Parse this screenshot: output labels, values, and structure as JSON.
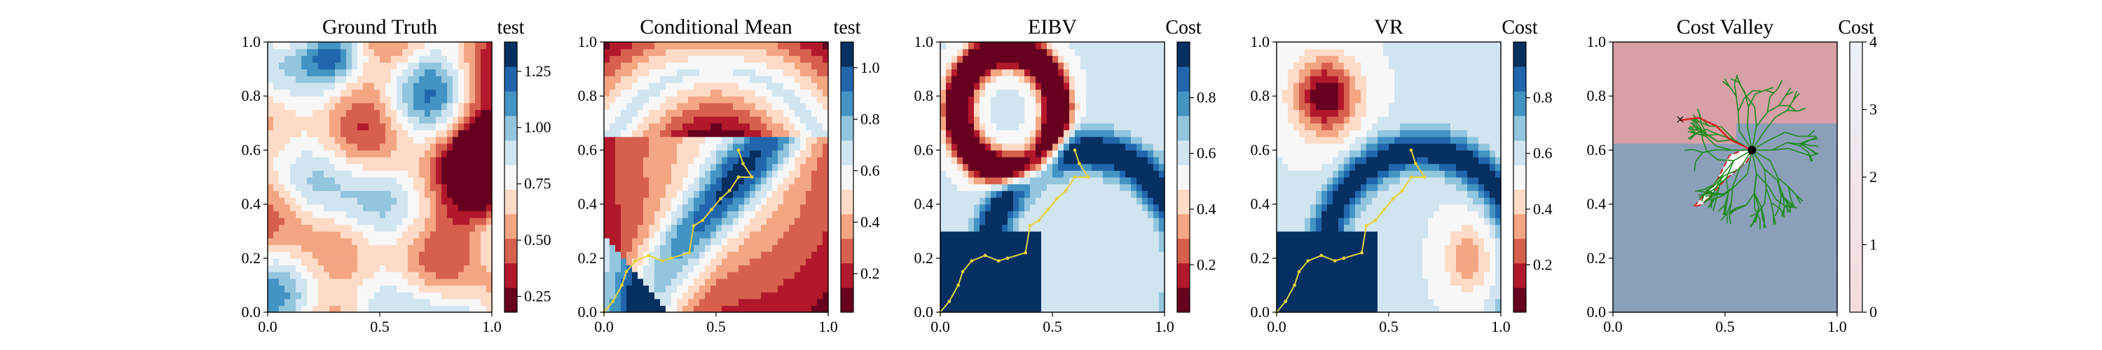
{
  "chart_data": [
    {
      "type": "heatmap",
      "title": "Ground Truth",
      "colorbar_label": "test",
      "colorbar_ticks": [
        "0.25",
        "0.50",
        "0.75",
        "1.00",
        "1.25"
      ],
      "colorbar_range": [
        0.18,
        1.38
      ],
      "xlim": [
        0,
        1
      ],
      "ylim": [
        0,
        1
      ],
      "x_ticks": [
        "0.0",
        "0.5",
        "1.0"
      ],
      "y_ticks": [
        "0.0",
        "0.2",
        "0.4",
        "0.6",
        "0.8",
        "1.0"
      ],
      "field": "ground_truth"
    },
    {
      "type": "heatmap",
      "title": "Conditional Mean",
      "colorbar_label": "test",
      "colorbar_ticks": [
        "0.2",
        "0.4",
        "0.6",
        "0.8",
        "1.0"
      ],
      "colorbar_range": [
        0.05,
        1.1
      ],
      "xlim": [
        0,
        1
      ],
      "ylim": [
        0,
        1
      ],
      "x_ticks": [
        "0.0",
        "0.5",
        "1.0"
      ],
      "y_ticks": [
        "0.0",
        "0.2",
        "0.4",
        "0.6",
        "0.8",
        "1.0"
      ],
      "field": "s_curve",
      "path": [
        [
          0.0,
          0.0
        ],
        [
          0.04,
          0.04
        ],
        [
          0.08,
          0.1
        ],
        [
          0.1,
          0.15
        ],
        [
          0.14,
          0.19
        ],
        [
          0.2,
          0.21
        ],
        [
          0.26,
          0.19
        ],
        [
          0.3,
          0.2
        ],
        [
          0.38,
          0.22
        ],
        [
          0.4,
          0.32
        ],
        [
          0.44,
          0.34
        ],
        [
          0.48,
          0.38
        ],
        [
          0.52,
          0.42
        ],
        [
          0.56,
          0.45
        ],
        [
          0.6,
          0.5
        ],
        [
          0.66,
          0.5
        ],
        [
          0.62,
          0.55
        ],
        [
          0.6,
          0.6
        ]
      ]
    },
    {
      "type": "heatmap",
      "title": "EIBV",
      "colorbar_label": "Cost",
      "colorbar_ticks": [
        "0.2",
        "0.4",
        "0.6",
        "0.8"
      ],
      "colorbar_range": [
        0.03,
        1.0
      ],
      "xlim": [
        0,
        1
      ],
      "ylim": [
        0,
        1
      ],
      "x_ticks": [
        "0.0",
        "0.5",
        "1.0"
      ],
      "y_ticks": [
        "0.0",
        "0.2",
        "0.4",
        "0.6",
        "0.8",
        "1.0"
      ],
      "field": "eibv",
      "path": [
        [
          0.0,
          0.0
        ],
        [
          0.04,
          0.04
        ],
        [
          0.08,
          0.1
        ],
        [
          0.1,
          0.15
        ],
        [
          0.14,
          0.19
        ],
        [
          0.2,
          0.21
        ],
        [
          0.26,
          0.19
        ],
        [
          0.3,
          0.2
        ],
        [
          0.38,
          0.22
        ],
        [
          0.4,
          0.32
        ],
        [
          0.44,
          0.34
        ],
        [
          0.48,
          0.38
        ],
        [
          0.52,
          0.42
        ],
        [
          0.56,
          0.45
        ],
        [
          0.6,
          0.5
        ],
        [
          0.66,
          0.5
        ],
        [
          0.62,
          0.55
        ],
        [
          0.6,
          0.6
        ]
      ]
    },
    {
      "type": "heatmap",
      "title": "VR",
      "colorbar_label": "Cost",
      "colorbar_ticks": [
        "0.2",
        "0.4",
        "0.6",
        "0.8"
      ],
      "colorbar_range": [
        0.03,
        1.0
      ],
      "xlim": [
        0,
        1
      ],
      "ylim": [
        0,
        1
      ],
      "x_ticks": [
        "0.0",
        "0.5",
        "1.0"
      ],
      "y_ticks": [
        "0.0",
        "0.2",
        "0.4",
        "0.6",
        "0.8",
        "1.0"
      ],
      "field": "vr",
      "path": [
        [
          0.0,
          0.0
        ],
        [
          0.04,
          0.04
        ],
        [
          0.08,
          0.1
        ],
        [
          0.1,
          0.15
        ],
        [
          0.14,
          0.19
        ],
        [
          0.2,
          0.21
        ],
        [
          0.26,
          0.19
        ],
        [
          0.3,
          0.2
        ],
        [
          0.38,
          0.22
        ],
        [
          0.4,
          0.32
        ],
        [
          0.44,
          0.34
        ],
        [
          0.48,
          0.38
        ],
        [
          0.52,
          0.42
        ],
        [
          0.56,
          0.45
        ],
        [
          0.6,
          0.5
        ],
        [
          0.66,
          0.5
        ],
        [
          0.62,
          0.55
        ],
        [
          0.6,
          0.6
        ]
      ]
    },
    {
      "type": "heatmap",
      "title": "Cost Valley",
      "colorbar_label": "Cost",
      "colorbar_ticks": [
        "0",
        "1",
        "2",
        "3",
        "4"
      ],
      "colorbar_range": [
        0,
        4
      ],
      "xlim": [
        0,
        1
      ],
      "ylim": [
        0,
        1
      ],
      "x_ticks": [
        "0.0",
        "0.5",
        "1.0"
      ],
      "y_ticks": [
        "0.0",
        "0.2",
        "0.4",
        "0.6",
        "0.8",
        "1.0"
      ],
      "field": "cost_valley",
      "markers": {
        "blue_x": [
          0.3,
          0.71
        ],
        "black_dot": [
          0.62,
          0.6
        ]
      },
      "red_route": [
        [
          0.3,
          0.71
        ],
        [
          0.38,
          0.72
        ],
        [
          0.46,
          0.69
        ],
        [
          0.52,
          0.64
        ],
        [
          0.57,
          0.62
        ],
        [
          0.62,
          0.6
        ]
      ],
      "obstacle": [
        [
          0.62,
          0.6
        ],
        [
          0.6,
          0.56
        ],
        [
          0.5,
          0.49
        ],
        [
          0.4,
          0.4
        ],
        [
          0.36,
          0.39
        ],
        [
          0.46,
          0.48
        ],
        [
          0.52,
          0.58
        ],
        [
          0.58,
          0.6
        ],
        [
          0.62,
          0.6
        ]
      ]
    }
  ],
  "colors": {
    "rdbu": [
      "#67001f",
      "#b2182b",
      "#d6604d",
      "#f4a582",
      "#fddbc7",
      "#f7f7f7",
      "#d1e5f0",
      "#92c5de",
      "#4393c3",
      "#2166ac",
      "#053061"
    ],
    "path": "#e6d23a",
    "tree": "#1f8a1f",
    "route": "#d62020",
    "marker_x": "#1f2fd6"
  }
}
